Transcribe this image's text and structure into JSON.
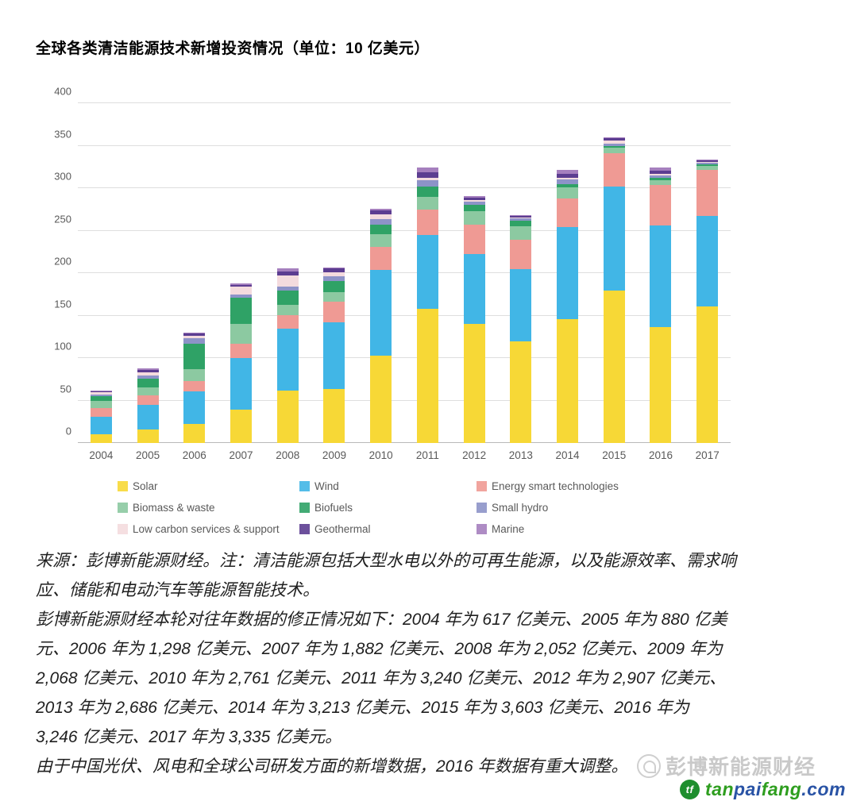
{
  "title": "全球各类清洁能源技术新增投资情况（单位：10 亿美元）",
  "chart_data": {
    "type": "bar",
    "stacked": true,
    "title": "全球各类清洁能源技术新增投资情况",
    "unit": "10 亿美元",
    "categories": [
      "2004",
      "2005",
      "2006",
      "2007",
      "2008",
      "2009",
      "2010",
      "2011",
      "2012",
      "2013",
      "2014",
      "2015",
      "2016",
      "2017"
    ],
    "series": [
      {
        "name": "Solar",
        "color": "#F7D836",
        "values": [
          10.4,
          16.1,
          22.0,
          38.8,
          62.0,
          64.0,
          103.0,
          157.5,
          140.0,
          119.5,
          145.5,
          179.0,
          136.0,
          160.5
        ]
      },
      {
        "name": "Wind",
        "color": "#41B6E6",
        "values": [
          20.8,
          28.4,
          39.0,
          61.2,
          73.0,
          78.5,
          101.0,
          87.5,
          82.5,
          85.5,
          108.5,
          122.5,
          120.5,
          107.0
        ]
      },
      {
        "name": "Energy smart technologies",
        "color": "#EF9A94",
        "values": [
          9.5,
          11.5,
          12.0,
          16.5,
          15.5,
          24.0,
          27.0,
          29.5,
          34.5,
          34.0,
          34.0,
          40.0,
          47.0,
          54.0
        ]
      },
      {
        "name": "Biomass & waste",
        "color": "#8CC9A1",
        "values": [
          8.5,
          9.5,
          14.0,
          24.0,
          12.5,
          11.5,
          14.5,
          15.5,
          15.5,
          16.5,
          13.0,
          6.0,
          6.0,
          4.8
        ]
      },
      {
        "name": "Biofuels",
        "color": "#2FA266",
        "values": [
          6.3,
          9.8,
          30.0,
          30.5,
          16.5,
          13.0,
          11.5,
          12.0,
          7.5,
          6.5,
          3.5,
          2.5,
          2.5,
          2.0
        ]
      },
      {
        "name": "Small hydro",
        "color": "#8D93C8",
        "values": [
          2.0,
          4.5,
          6.0,
          4.0,
          5.0,
          5.0,
          7.0,
          7.0,
          4.0,
          2.5,
          5.5,
          2.5,
          3.0,
          1.5
        ]
      },
      {
        "name": "Low carbon services & support",
        "color": "#F4DBDE",
        "values": [
          2.2,
          3.5,
          3.0,
          9.0,
          13.0,
          5.0,
          5.0,
          3.0,
          2.0,
          1.0,
          2.5,
          3.5,
          2.0,
          1.2
        ]
      },
      {
        "name": "Geothermal",
        "color": "#5C3D91",
        "values": [
          1.5,
          3.2,
          2.8,
          2.2,
          4.5,
          4.3,
          4.6,
          6.5,
          2.7,
          1.8,
          4.8,
          2.5,
          4.1,
          1.4
        ]
      },
      {
        "name": "Marine",
        "color": "#A57FBE",
        "values": [
          0.5,
          1.5,
          1.0,
          2.0,
          3.2,
          1.5,
          2.5,
          5.5,
          2.0,
          1.3,
          4.0,
          1.8,
          3.5,
          1.1
        ]
      }
    ],
    "totals": [
      61.7,
      88.0,
      129.8,
      188.2,
      205.2,
      206.8,
      276.1,
      324.0,
      290.7,
      268.6,
      321.3,
      360.3,
      324.6,
      333.5
    ],
    "ylim": [
      0,
      400
    ],
    "yticks": [
      0,
      50,
      100,
      150,
      200,
      250,
      300,
      350,
      400
    ],
    "grid": true,
    "legend_position": "bottom"
  },
  "footnotes": {
    "lines": [
      "来源：彭博新能源财经。注：清洁能源包括大型水电以外的可再生能源，以及能源效率、需求响",
      "应、储能和电动汽车等能源智能技术。",
      "彭博新能源财经本轮对往年数据的修正情况如下：2004 年为 617 亿美元、2005 年为 880 亿美",
      "元、2006 年为 1,298 亿美元、2007 年为 1,882 亿美元、2008 年为 2,052 亿美元、2009 年为",
      "2,068 亿美元、2010 年为 2,761 亿美元、2011 年为 3,240 亿美元、2012 年为 2,907 亿美元、",
      "2013 年为 2,686 亿美元、2014 年为 3,213 亿美元、2015 年为 3,603 亿美元、2016 年为",
      "3,246 亿美元、2017 年为 3,335 亿美元。",
      "由于中国光伏、风电和全球公司研发方面的新增数据，2016 年数据有重大调整。"
    ]
  },
  "watermark": {
    "text": "彭博新能源财经",
    "icon": "speech-bubble-icon"
  },
  "sitelogo": {
    "circle_text": "tf",
    "icon": "tanpaifang-circle-icon",
    "colors": {
      "green": "#2E9E1F",
      "blue": "#2953A5"
    },
    "parts": [
      {
        "text": "tan",
        "color": "green"
      },
      {
        "text": "pai",
        "color": "blue"
      },
      {
        "text": "fang",
        "color": "green"
      },
      {
        "text": ".com",
        "color": "blue"
      }
    ]
  }
}
